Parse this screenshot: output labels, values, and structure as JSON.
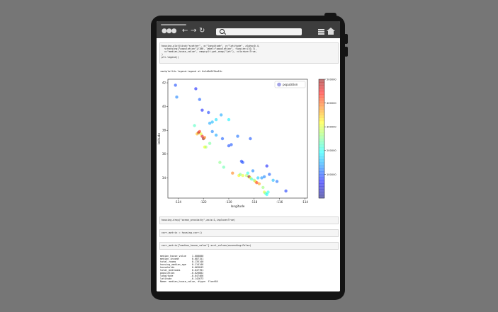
{
  "browser": {
    "nav_back": "←",
    "nav_forward": "→",
    "nav_reload": "↻"
  },
  "cells": {
    "plot_code": [
      "housing.plot(kind=\"scatter\", x=\"longitude\", y=\"latitude\", alpha=0.4,",
      "  s=housing[\"population\"]/100, label=\"population\", figsize=(10,7),",
      "  c=\"median_house_value\", cmap=plt.get_cmap(\"jet\"), colorbar=True,",
      ")",
      "plt.legend()"
    ],
    "plot_output": "<matplotlib.legend.Legend at 0x1d0d0f5ba10>",
    "drop_code": "housing.drop(\"ocean_proximity\",axis=1,inplace=True)",
    "corr_code": "corr_matrix = housing.corr()",
    "sort_code": "corr_matrix[\"median_house_value\"].sort_values(ascending=False)",
    "corr_output": [
      "median_house_value    1.000000",
      "median_income         0.687151",
      "total_rooms           0.135140",
      "housing_median_age    0.114146",
      "households            0.065843",
      "total_bedrooms        0.047781",
      "population           -0.026882",
      "longitude            -0.047466",
      "latitude             -0.142673",
      "Name: median_house_value, dtype: float64"
    ]
  },
  "chart_data": {
    "type": "scatter",
    "title": "",
    "xlabel": "longitude",
    "ylabel": "latitude",
    "xlim": [
      -124.8,
      -113.8
    ],
    "ylim": [
      32.3,
      42.3
    ],
    "xticks": [
      -124,
      -122,
      -120,
      -118,
      -116,
      -114
    ],
    "yticks": [
      34,
      36,
      38,
      40,
      42
    ],
    "legend": {
      "label": "population",
      "placement": "top-right"
    },
    "colorbar": {
      "ticks": [
        100000,
        200000,
        300000,
        400000,
        500000
      ],
      "colormap": "jet",
      "range": [
        0,
        500000
      ]
    },
    "series": [
      {
        "points": [
          [
            -122.4,
            37.8,
            480000
          ],
          [
            -122.3,
            37.9,
            420000
          ],
          [
            -122.1,
            37.5,
            450000
          ],
          [
            -122.0,
            37.3,
            500000
          ],
          [
            -121.9,
            37.4,
            380000
          ],
          [
            -122.2,
            37.7,
            300000
          ],
          [
            -122.5,
            37.7,
            350000
          ],
          [
            -121.5,
            38.6,
            140000
          ],
          [
            -121.3,
            38.7,
            150000
          ],
          [
            -121.0,
            38.9,
            170000
          ],
          [
            -121.8,
            36.6,
            260000
          ],
          [
            -121.9,
            36.6,
            300000
          ],
          [
            -120.7,
            35.3,
            250000
          ],
          [
            -120.4,
            34.9,
            230000
          ],
          [
            -119.7,
            34.4,
            380000
          ],
          [
            -119.2,
            34.2,
            320000
          ],
          [
            -118.9,
            34.2,
            300000
          ],
          [
            -118.6,
            34.2,
            280000
          ],
          [
            -118.4,
            34.1,
            500000
          ],
          [
            -118.3,
            34.0,
            300000
          ],
          [
            -118.2,
            33.9,
            210000
          ],
          [
            -118.0,
            33.8,
            250000
          ],
          [
            -117.9,
            33.7,
            330000
          ],
          [
            -117.8,
            33.6,
            420000
          ],
          [
            -117.6,
            33.5,
            360000
          ],
          [
            -117.2,
            32.8,
            300000
          ],
          [
            -117.1,
            32.7,
            230000
          ],
          [
            -117.0,
            32.6,
            190000
          ],
          [
            -116.9,
            32.8,
            200000
          ],
          [
            -117.3,
            33.2,
            260000
          ],
          [
            -117.4,
            34.0,
            130000
          ],
          [
            -117.2,
            34.1,
            120000
          ],
          [
            -116.5,
            33.8,
            150000
          ],
          [
            -116.2,
            33.7,
            110000
          ],
          [
            -115.5,
            32.9,
            80000
          ],
          [
            -120.0,
            36.7,
            90000
          ],
          [
            -119.8,
            36.8,
            95000
          ],
          [
            -119.0,
            35.4,
            85000
          ],
          [
            -118.9,
            35.3,
            90000
          ],
          [
            -120.5,
            37.3,
            100000
          ],
          [
            -121.0,
            37.6,
            140000
          ],
          [
            -121.3,
            37.9,
            120000
          ],
          [
            -122.7,
            38.4,
            220000
          ],
          [
            -122.3,
            40.6,
            100000
          ],
          [
            -122.1,
            39.7,
            70000
          ],
          [
            -121.6,
            39.5,
            85000
          ],
          [
            -124.1,
            40.8,
            120000
          ],
          [
            -124.2,
            41.8,
            90000
          ],
          [
            -122.6,
            41.5,
            70000
          ],
          [
            -120.6,
            39.3,
            140000
          ],
          [
            -120.0,
            38.9,
            180000
          ],
          [
            -119.3,
            37.5,
            110000
          ],
          [
            -118.3,
            37.3,
            95000
          ],
          [
            -117.0,
            35.0,
            70000
          ],
          [
            -118.1,
            34.6,
            120000
          ],
          [
            -116.8,
            34.3,
            100000
          ],
          [
            -117.7,
            34.0,
            160000
          ],
          [
            -118.5,
            34.4,
            200000
          ],
          [
            -119.1,
            34.3,
            250000
          ],
          [
            -121.5,
            36.9,
            240000
          ]
        ]
      }
    ]
  }
}
